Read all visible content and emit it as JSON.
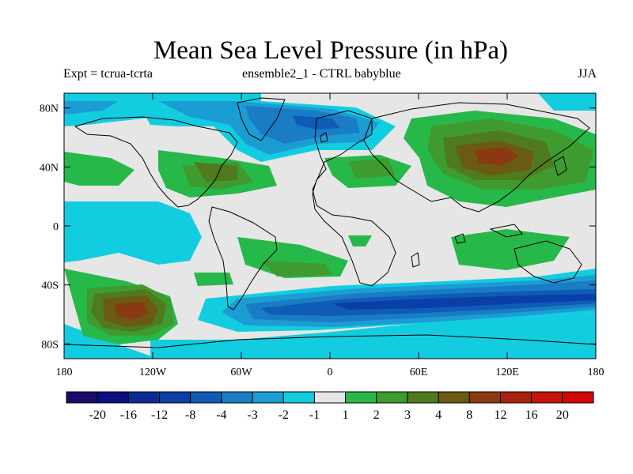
{
  "title": "Mean Sea Level Pressure (in hPa)",
  "subtitle_left": "Expt = tcrua-tcrta",
  "subtitle_center": "ensemble2_1 - CTRL babyblue",
  "subtitle_right": "JJA",
  "chart_data": {
    "type": "heatmap",
    "title": "Mean Sea Level Pressure (in hPa)",
    "projection": "cylindrical-equidistant",
    "lon_range": [
      -180,
      180
    ],
    "lat_range": [
      -90,
      90
    ],
    "y_ticks": [
      {
        "value": 80,
        "label": "80N"
      },
      {
        "value": 40,
        "label": "40N"
      },
      {
        "value": 0,
        "label": "0"
      },
      {
        "value": -40,
        "label": "40S"
      },
      {
        "value": -80,
        "label": "80S"
      }
    ],
    "x_ticks": [
      {
        "value": -180,
        "label": "180"
      },
      {
        "value": -120,
        "label": "120W"
      },
      {
        "value": -60,
        "label": "60W"
      },
      {
        "value": 0,
        "label": "0"
      },
      {
        "value": 60,
        "label": "60E"
      },
      {
        "value": 120,
        "label": "120E"
      },
      {
        "value": 180,
        "label": "180"
      }
    ],
    "colorbar": {
      "labels": [
        "-20",
        "-16",
        "-12",
        "-8",
        "-4",
        "-3",
        "-2",
        "-1",
        "1",
        "2",
        "3",
        "4",
        "8",
        "12",
        "16",
        "20"
      ],
      "colors": [
        "#1a0a6b",
        "#0a0e80",
        "#0c2a96",
        "#0b3fa8",
        "#0f5cb6",
        "#1a7cc4",
        "#1b9dd4",
        "#12cde0",
        "#e6e6e6",
        "#27b84a",
        "#3f9a2f",
        "#4f7a1e",
        "#6a5a14",
        "#8a3a12",
        "#a8200e",
        "#c4140c",
        "#d40808"
      ]
    },
    "regions": [
      {
        "name": "southern-ocean-low",
        "class": "-8 to -4"
      },
      {
        "name": "north-atlantic-arctic-low",
        "class": "-4 to -2"
      },
      {
        "name": "south-pacific-high",
        "class": "8 to 12"
      },
      {
        "name": "asia-high",
        "class": "4 to 8"
      }
    ]
  }
}
